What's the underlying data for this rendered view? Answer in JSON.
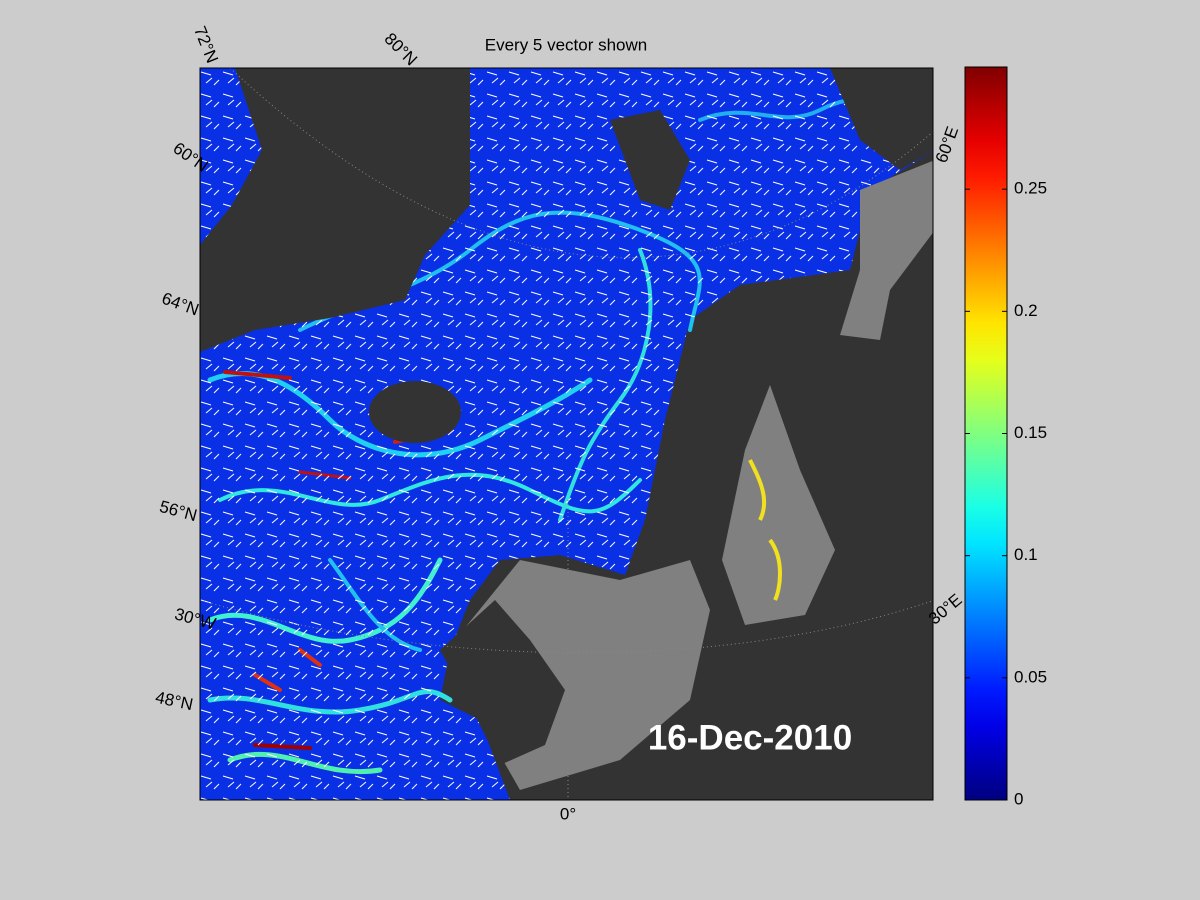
{
  "header": {
    "title": "Every 5 vector shown"
  },
  "map": {
    "date_label": "16-Dec-2010",
    "graticule_labels": [
      "72°N",
      "80°N",
      "60°N",
      "64°N",
      "56°N",
      "30°W",
      "48°N",
      "60°E",
      "30°E",
      "0°"
    ]
  },
  "colorbar": {
    "colormap": "jet",
    "ylim": [
      0,
      0.3
    ],
    "yticks": [
      0,
      0.05,
      0.1,
      0.15,
      0.2,
      0.25
    ]
  }
}
